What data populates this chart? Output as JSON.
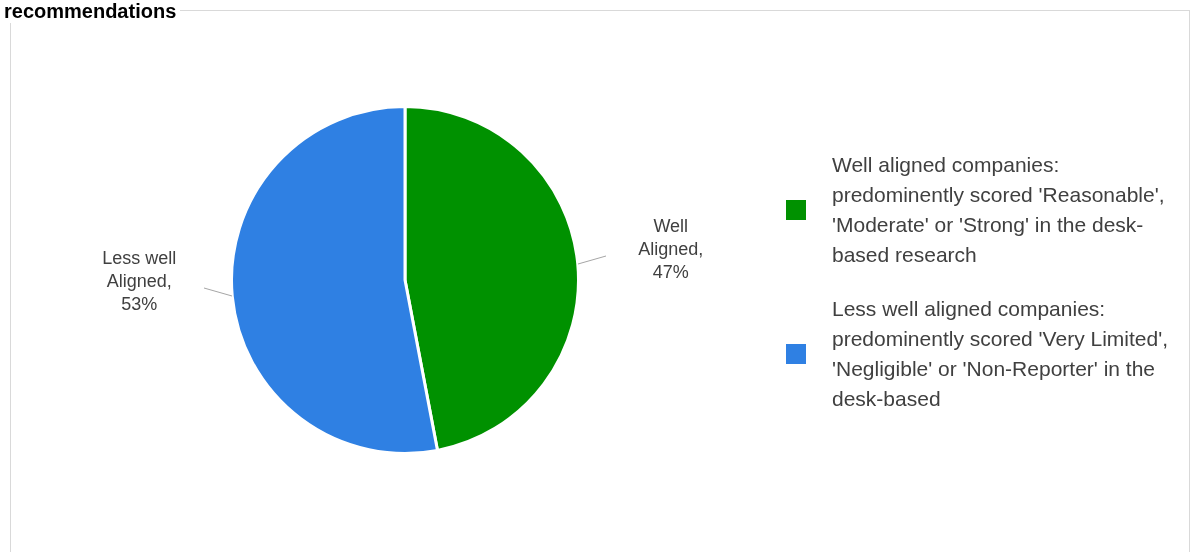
{
  "chart_data": {
    "type": "pie",
    "title": "recommendations",
    "categories": [
      "Well aligned companies: predominently scored 'Reasonable', 'Moderate' or 'Strong' in the desk-based research",
      "Less well aligned companies: predominently scored 'Very Limited', 'Negligible' or 'Non-Reporter' in the desk-based"
    ],
    "values": [
      47,
      53
    ],
    "colors": [
      "#009100",
      "#2f80e3"
    ],
    "value_labels": [
      "Well Aligned, 47%",
      "Less well Aligned, 53%"
    ],
    "legend": "right"
  }
}
